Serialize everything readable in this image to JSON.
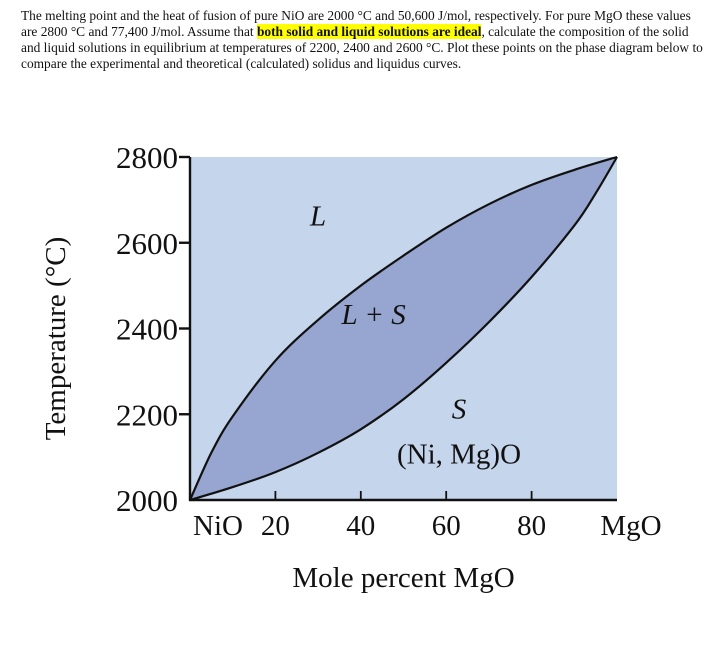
{
  "problem": {
    "part1": "The melting point and the heat of fusion of pure NiO are 2000 °C and 50,600 J/mol, respectively. For pure MgO these values are 2800 °C and 77,400 J/mol. Assume that ",
    "highlight": "both solid and liquid solutions are ideal",
    "part2": ", calculate the composition of the solid and liquid solutions in equilibrium at temperatures of 2200, 2400 and 2600 °C. Plot these points on the phase diagram below to compare the experimental and theoretical (calculated) solidus and liquidus curves."
  },
  "colors": {
    "plot_background": "#c5d5ec",
    "two_phase_region": "#96a6d0",
    "highlight": "#ffff00"
  },
  "chart_data": {
    "type": "line",
    "title": "",
    "xlabel": "Mole percent MgO",
    "ylabel": "Temperature (°C)",
    "xlim": [
      0,
      100
    ],
    "ylim": [
      2000,
      2800
    ],
    "x_tick_labels": [
      "NiO",
      "20",
      "40",
      "60",
      "80",
      "MgO"
    ],
    "x_tick_values": [
      0,
      20,
      40,
      60,
      80,
      100
    ],
    "y_tick_labels": [
      "2000",
      "2200",
      "2400",
      "2600",
      "2800"
    ],
    "y_tick_values": [
      2000,
      2200,
      2400,
      2600,
      2800
    ],
    "grid": false,
    "series": [
      {
        "x": [
          0,
          5,
          10,
          20,
          30,
          40,
          50,
          60,
          70,
          80,
          90,
          100
        ],
        "y": [
          2000,
          2110,
          2195,
          2325,
          2420,
          2500,
          2570,
          2635,
          2690,
          2735,
          2770,
          2800
        ]
      },
      {
        "x": [
          0,
          10,
          20,
          30,
          40,
          50,
          60,
          70,
          80,
          90,
          95,
          100
        ],
        "y": [
          2000,
          2030,
          2065,
          2110,
          2165,
          2235,
          2320,
          2415,
          2520,
          2640,
          2715,
          2800
        ]
      }
    ],
    "annotations": [
      {
        "text": "L",
        "x": 30,
        "y": 2640
      },
      {
        "text": "L + S",
        "x": 43,
        "y": 2410
      },
      {
        "text": "S",
        "x": 63,
        "y": 2190
      },
      {
        "text": "(Ni, Mg)O",
        "x": 63,
        "y": 2085
      }
    ]
  }
}
